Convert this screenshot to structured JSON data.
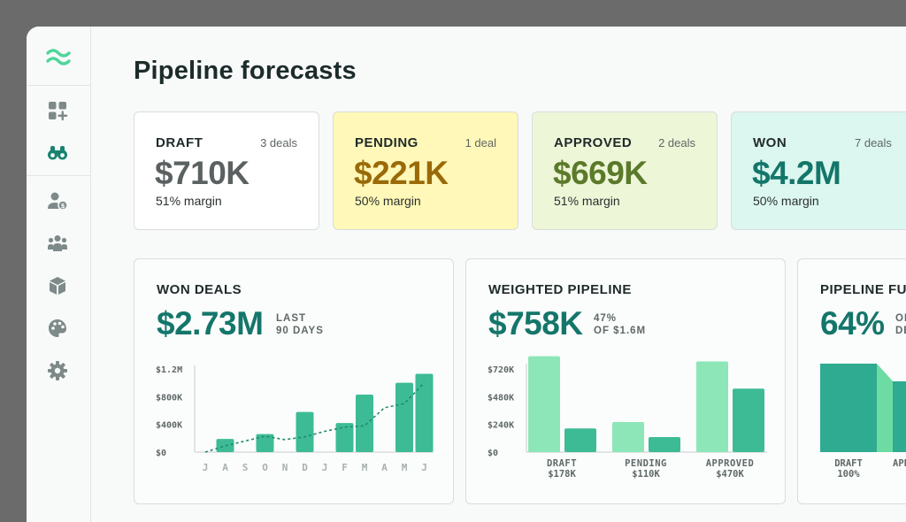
{
  "page": {
    "title": "Pipeline forecasts"
  },
  "sidebar": {
    "items": [
      {
        "name": "dashboard-add-icon"
      },
      {
        "name": "binoculars-icon",
        "active": true
      },
      {
        "name": "user-money-icon"
      },
      {
        "name": "team-icon"
      },
      {
        "name": "box-icon"
      },
      {
        "name": "palette-icon"
      },
      {
        "name": "gear-icon"
      }
    ]
  },
  "stats": [
    {
      "label": "DRAFT",
      "count": "3 deals",
      "value": "$710K",
      "margin": "51% margin",
      "bg": "#ffffff",
      "color": "#5b6161"
    },
    {
      "label": "PENDING",
      "count": "1 deal",
      "value": "$221K",
      "margin": "50% margin",
      "bg": "#fff8b8",
      "color": "#9a6a08"
    },
    {
      "label": "APPROVED",
      "count": "2 deals",
      "value": "$669K",
      "margin": "51% margin",
      "bg": "#eef6d8",
      "color": "#5b7a2a"
    },
    {
      "label": "WON",
      "count": "7 deals",
      "value": "$4.2M",
      "margin": "50% margin",
      "bg": "#dcf7ef",
      "color": "#14766a"
    }
  ],
  "won_deals": {
    "title": "WON DEALS",
    "value": "$2.73M",
    "sub1": "LAST",
    "sub2": "90 DAYS"
  },
  "weighted": {
    "title": "WEIGHTED PIPELINE",
    "value": "$758K",
    "sub1": "47%",
    "sub2": "OF $1.6M"
  },
  "funnel": {
    "title": "PIPELINE FUNNEL",
    "value": "64%",
    "sub1": "OF",
    "sub2": "DEALS"
  },
  "chart_data": [
    {
      "type": "bar",
      "title": "WON DEALS",
      "categories": [
        "J",
        "A",
        "S",
        "O",
        "N",
        "D",
        "J",
        "F",
        "M",
        "A",
        "M",
        "J"
      ],
      "values": [
        0,
        190000,
        0,
        260000,
        0,
        580000,
        0,
        420000,
        830000,
        0,
        1000000,
        1130000
      ],
      "trend": [
        0,
        90000,
        160000,
        230000,
        180000,
        220000,
        300000,
        360000,
        380000,
        640000,
        700000,
        1000000
      ],
      "yticks": [
        "$0",
        "$400K",
        "$800K",
        "$1.2M"
      ],
      "ylim": [
        0,
        1300000
      ],
      "colors": {
        "bar": "#3dbb95",
        "trend": "#1f8a6d"
      }
    },
    {
      "type": "bar",
      "title": "WEIGHTED PIPELINE",
      "categories": [
        "DRAFT",
        "PENDING",
        "APPROVED"
      ],
      "sublabels": [
        "$178K",
        "$110K",
        "$470K"
      ],
      "series": [
        {
          "values": [
            830000,
            260000,
            785000
          ]
        },
        {
          "values": [
            205000,
            130000,
            550000
          ]
        }
      ],
      "yticks": [
        "$0",
        "$240K",
        "$480K",
        "$720K"
      ],
      "ylim": [
        0,
        800000
      ],
      "colors": {
        "total": "#8de6b8",
        "weighted": "#3dbb95"
      }
    },
    {
      "type": "bar",
      "title": "PIPELINE FUNNEL",
      "categories": [
        "DRAFT",
        "APPROVED"
      ],
      "sublabels": [
        "100%",
        ""
      ],
      "values": [
        100,
        80
      ],
      "colors": {
        "main": "#2eab90",
        "light": "#6cdc9f",
        "connector": "#7be0c0"
      }
    }
  ]
}
